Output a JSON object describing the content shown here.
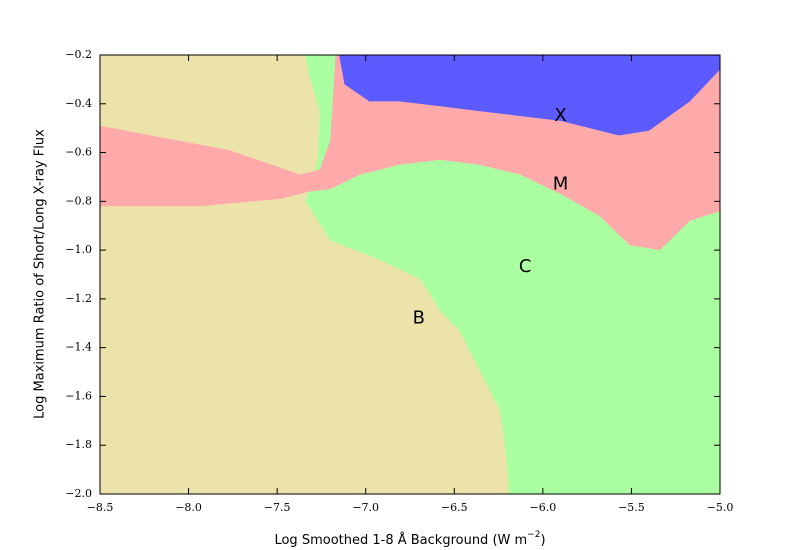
{
  "chart_data": {
    "type": "region",
    "xlabel": {
      "text": "Log Smoothed 1-8 Å Background (W m",
      "superscript": "−2",
      "suffix": ")"
    },
    "ylabel": "Log Maximum Ratio of Short/Long X-ray Flux",
    "xlim": [
      -8.5,
      -5.0
    ],
    "ylim": [
      -2.0,
      -0.2
    ],
    "xticks": [
      {
        "value": -8.5,
        "label": "−8.5"
      },
      {
        "value": -8.0,
        "label": "−8.0"
      },
      {
        "value": -7.5,
        "label": "−7.5"
      },
      {
        "value": -7.0,
        "label": "−7.0"
      },
      {
        "value": -6.5,
        "label": "−6.5"
      },
      {
        "value": -6.0,
        "label": "−6.0"
      },
      {
        "value": -5.5,
        "label": "−5.5"
      },
      {
        "value": -5.0,
        "label": "−5.0"
      }
    ],
    "yticks": [
      {
        "value": -2.0,
        "label": "−2.0"
      },
      {
        "value": -1.8,
        "label": "−1.8"
      },
      {
        "value": -1.6,
        "label": "−1.6"
      },
      {
        "value": -1.4,
        "label": "−1.4"
      },
      {
        "value": -1.2,
        "label": "−1.2"
      },
      {
        "value": -1.0,
        "label": "−1.0"
      },
      {
        "value": -0.8,
        "label": "−0.8"
      },
      {
        "value": -0.6,
        "label": "−0.6"
      },
      {
        "value": -0.4,
        "label": "−0.4"
      },
      {
        "value": -0.2,
        "label": "−0.2"
      }
    ],
    "regions": [
      {
        "name": "C",
        "color": "#aaffa0",
        "label_at": [
          -6.1,
          -1.07
        ],
        "x": [
          -8.5,
          -5.0,
          -5.0,
          -8.5
        ],
        "y": [
          -2.0,
          -2.0,
          -0.2,
          -0.2
        ]
      },
      {
        "name": "B",
        "color": "#ebe3a9",
        "label_at": [
          -6.7,
          -1.28
        ],
        "x": [
          -8.5,
          -7.34,
          -7.32,
          -7.26,
          -7.27,
          -7.34,
          -7.2,
          -6.92,
          -6.69,
          -6.58,
          -6.47,
          -6.36,
          -6.24,
          -6.21,
          -6.19,
          -8.5
        ],
        "y": [
          -0.2,
          -0.2,
          -0.28,
          -0.43,
          -0.63,
          -0.8,
          -0.96,
          -1.04,
          -1.12,
          -1.25,
          -1.33,
          -1.49,
          -1.66,
          -1.82,
          -2.0,
          -2.0
        ]
      },
      {
        "name": "M",
        "color": "#ffaaaa",
        "label_at": [
          -5.9,
          -0.73
        ],
        "x": [
          -8.5,
          -7.77,
          -7.37,
          -7.26,
          -7.2,
          -7.17,
          -5.0,
          -5.0,
          -5.17,
          -5.34,
          -5.51,
          -5.68,
          -5.9,
          -6.13,
          -6.36,
          -6.58,
          -6.81,
          -7.03,
          -7.2,
          -7.32,
          -7.48,
          -7.94,
          -8.5
        ],
        "y": [
          -0.49,
          -0.59,
          -0.69,
          -0.67,
          -0.55,
          -0.2,
          -0.2,
          -0.84,
          -0.88,
          -1.0,
          -0.98,
          -0.86,
          -0.77,
          -0.69,
          -0.65,
          -0.63,
          -0.65,
          -0.69,
          -0.75,
          -0.76,
          -0.79,
          -0.82,
          -0.82
        ]
      },
      {
        "name": "X",
        "color": "#5b5bff",
        "label_at": [
          -5.9,
          -0.45
        ],
        "x": [
          -7.15,
          -5.0,
          -5.0,
          -5.17,
          -5.4,
          -5.57,
          -5.9,
          -6.13,
          -6.36,
          -6.58,
          -6.81,
          -6.98,
          -7.12
        ],
        "y": [
          -0.2,
          -0.2,
          -0.26,
          -0.39,
          -0.51,
          -0.53,
          -0.47,
          -0.45,
          -0.43,
          -0.41,
          -0.39,
          -0.39,
          -0.32
        ]
      }
    ]
  }
}
